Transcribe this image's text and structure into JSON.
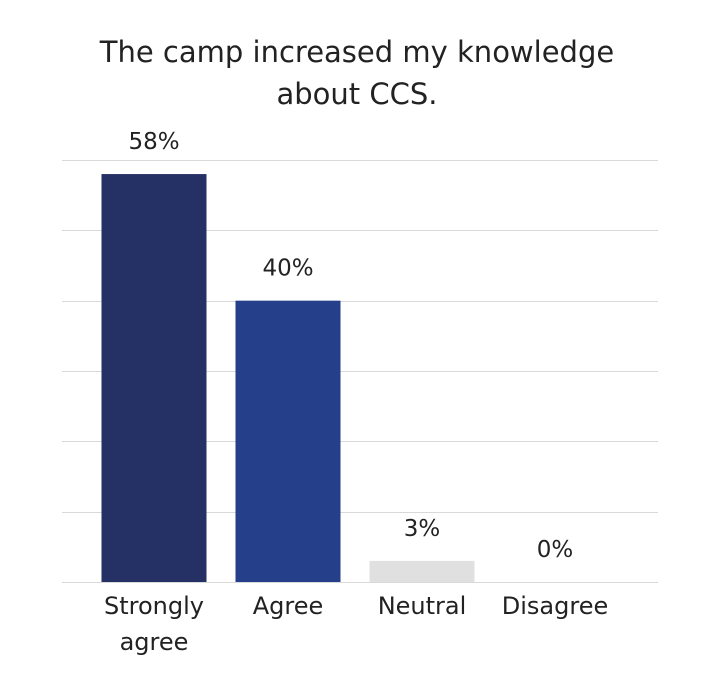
{
  "chart_data": {
    "type": "bar",
    "title": "The camp increased my knowledge about CCS.",
    "title_lines": [
      "The camp increased my knowledge",
      "about CCS."
    ],
    "categories": [
      "Strongly agree",
      "Agree",
      "Neutral",
      "Disagree"
    ],
    "category_lines": [
      [
        "Strongly",
        "agree"
      ],
      [
        "Agree"
      ],
      [
        "Neutral"
      ],
      [
        "Disagree"
      ]
    ],
    "values": [
      58,
      40,
      3,
      0
    ],
    "value_labels": [
      "58%",
      "40%",
      "3%",
      "0%"
    ],
    "value_unit": "%",
    "ylim": [
      0,
      60
    ],
    "y_gridlines": [
      0,
      10,
      20,
      30,
      40,
      50,
      60
    ],
    "grid": true,
    "y_axis_labels_shown": false,
    "legend": "none",
    "colors": [
      "#253164",
      "#263f8b",
      "#e0e0e0",
      "#e0e0e0"
    ],
    "gridline_color": "#d9d9d9"
  }
}
